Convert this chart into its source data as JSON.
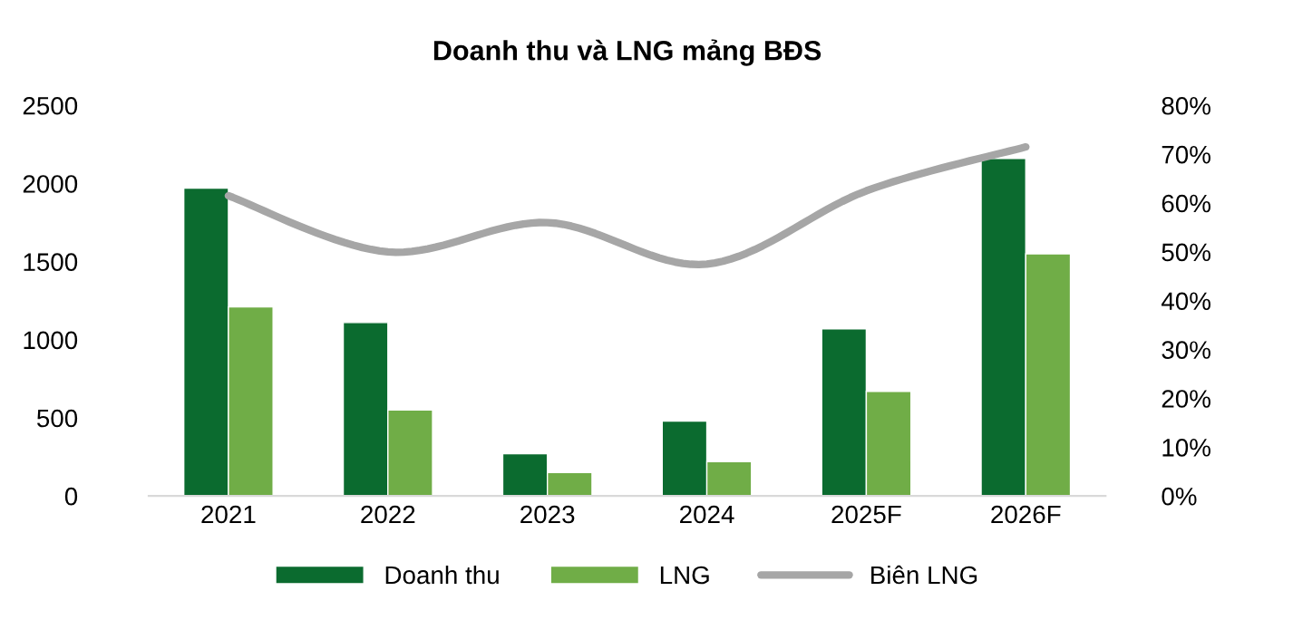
{
  "chart_data": {
    "type": "bar",
    "title": "Doanh thu và LNG mảng BĐS",
    "categories": [
      "2021",
      "2022",
      "2023",
      "2024",
      "2025F",
      "2026F"
    ],
    "series": [
      {
        "name": "Doanh thu",
        "color": "#0b6b2f",
        "values": [
          1970,
          1110,
          270,
          480,
          1070,
          2160
        ]
      },
      {
        "name": "LNG",
        "color": "#70ad47",
        "values": [
          1210,
          550,
          150,
          220,
          670,
          1550
        ]
      },
      {
        "name": "Biên LNG",
        "color": "#a6a6a6",
        "type": "line",
        "axis": "y2",
        "values": [
          61.5,
          50,
          56,
          47.5,
          62.5,
          71.5
        ]
      }
    ],
    "ylim": [
      0,
      2500
    ],
    "yticks": [
      0,
      500,
      1000,
      1500,
      2000,
      2500
    ],
    "y2lim": [
      0,
      80
    ],
    "y2ticks": [
      {
        "value": 0,
        "label": "0%"
      },
      {
        "value": 10,
        "label": "10%"
      },
      {
        "value": 20,
        "label": "20%"
      },
      {
        "value": 30,
        "label": "30%"
      },
      {
        "value": 40,
        "label": "40%"
      },
      {
        "value": 50,
        "label": "50%"
      },
      {
        "value": 60,
        "label": "60%"
      },
      {
        "value": 70,
        "label": "70%"
      },
      {
        "value": 80,
        "label": "80%"
      }
    ],
    "grid": false,
    "legend": "bottom"
  }
}
